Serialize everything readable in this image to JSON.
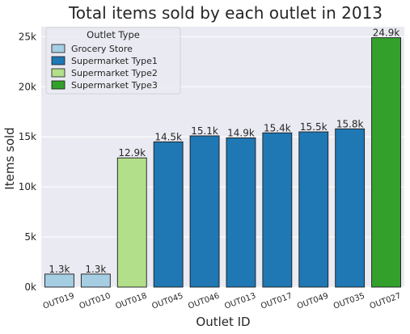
{
  "chart_data": {
    "type": "bar",
    "title": "Total items sold by each outlet in 2013",
    "xlabel": "Outlet ID",
    "ylabel": "Items sold",
    "ylim": [
      0,
      26000
    ],
    "yticks": [
      0,
      5000,
      10000,
      15000,
      20000,
      25000
    ],
    "ytick_labels": [
      "0k",
      "5k",
      "10k",
      "15k",
      "20k",
      "25k"
    ],
    "grid": true,
    "legend": {
      "title": "Outlet Type",
      "placement": "top-left",
      "items": [
        {
          "label": "Grocery Store",
          "color": "#a6cee3"
        },
        {
          "label": "Supermarket Type1",
          "color": "#1f78b4"
        },
        {
          "label": "Supermarket Type2",
          "color": "#b2df8a"
        },
        {
          "label": "Supermarket Type3",
          "color": "#33a02c"
        }
      ]
    },
    "bars": [
      {
        "category": "OUT019",
        "value": 1300,
        "label": "1.3k",
        "type_index": 0
      },
      {
        "category": "OUT010",
        "value": 1300,
        "label": "1.3k",
        "type_index": 0
      },
      {
        "category": "OUT018",
        "value": 12900,
        "label": "12.9k",
        "type_index": 2
      },
      {
        "category": "OUT045",
        "value": 14500,
        "label": "14.5k",
        "type_index": 1
      },
      {
        "category": "OUT046",
        "value": 15100,
        "label": "15.1k",
        "type_index": 1
      },
      {
        "category": "OUT013",
        "value": 14900,
        "label": "14.9k",
        "type_index": 1
      },
      {
        "category": "OUT017",
        "value": 15400,
        "label": "15.4k",
        "type_index": 1
      },
      {
        "category": "OUT049",
        "value": 15500,
        "label": "15.5k",
        "type_index": 1
      },
      {
        "category": "OUT035",
        "value": 15800,
        "label": "15.8k",
        "type_index": 1
      },
      {
        "category": "OUT027",
        "value": 24900,
        "label": "24.9k",
        "type_index": 3
      }
    ]
  }
}
